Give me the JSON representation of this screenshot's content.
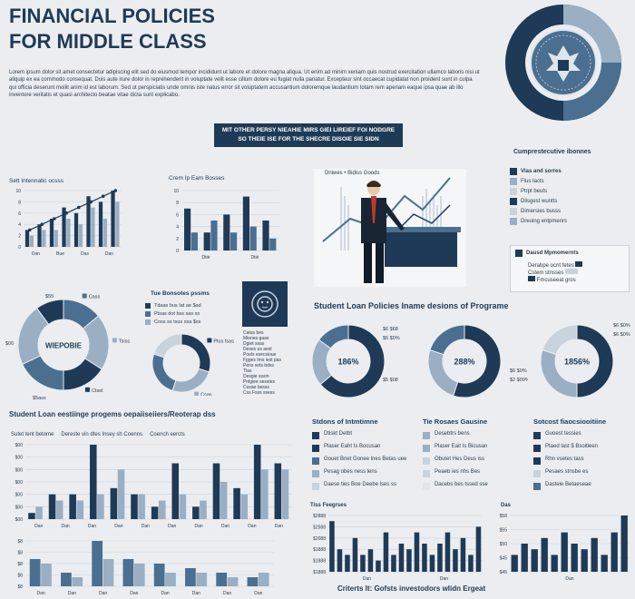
{
  "header": {
    "title_line1": "FINANCIAL POLICIES",
    "title_line2": "FOR MIDDLE CLASS",
    "intro": "Lorem ipsum dolor sit amet consectetur adipiscing elit sed do eiusmod tempor incididunt ut labore et dolore magna aliqua. Ut enim ad minim veniam quis nostrud exercitation ullamco laboris nisi ut aliquip ex ea commodo consequat. Duis aute irure dolor in reprehenderit in voluptate velit esse cillum dolore eu fugiat nulla pariatur. Excepteur sint occaecat cupidatat non proident sunt in culpa qui officia deserunt mollit anim id est laborum. Sed ut perspiciatis unde omnis iste natus error sit voluptatem accusantium doloremque laudantium totam rem aperiam eaque ipsa quae ab illo inventore veritatis et quasi architecto beatae vitae dicta sunt explicabo.",
    "banner_line1": "MIT OTHER PERSY NIEAHIE MIRS GIEI LIREIEF FOI NODGRE",
    "banner_line2": "SO THEIE ISE FOR THE SHECRE DISOIE SIE SIDN"
  },
  "colors": {
    "navy": "#1f3a56",
    "mid": "#4a6f91",
    "light": "#9aafc4",
    "pale": "#c9d3de"
  },
  "chart_data": [
    {
      "type": "bar",
      "title": "Sett Intennatic ocsss",
      "series": [
        {
          "name": "",
          "values": [
            3,
            4,
            5,
            7,
            6,
            9,
            8,
            10
          ]
        },
        {
          "name": "",
          "values": [
            2,
            3,
            3,
            5,
            4,
            7,
            5,
            8
          ]
        }
      ],
      "line_values": [
        3,
        4,
        5,
        6,
        7,
        8,
        9,
        10
      ],
      "categories": [
        "",
        "",
        "",
        "",
        "",
        "",
        "",
        ""
      ],
      "xticks": [
        "Dan",
        "Bue",
        "Das",
        "Dan"
      ],
      "yticks": [
        "10",
        "8",
        "6",
        "4",
        "2",
        "0"
      ]
    },
    {
      "type": "bar",
      "title": "Crem Ip Eam Bosses",
      "series": [
        {
          "name": "",
          "values": [
            7,
            3,
            6,
            9,
            5
          ]
        },
        {
          "name": "",
          "values": [
            3,
            5,
            3,
            4,
            2
          ]
        }
      ],
      "xticks": [
        "Dtiè",
        "Dtiè"
      ],
      "yticks": [
        "10",
        "8",
        "6",
        "4",
        "2",
        "0"
      ]
    },
    {
      "type": "pie",
      "title": "",
      "center_label": "WIEPOBIE",
      "slices": [
        {
          "label": "Cass",
          "value": 14
        },
        {
          "label": "Tsiss",
          "value": 20
        },
        {
          "label": "Ctsel",
          "value": 16
        },
        {
          "label": "",
          "value": 18
        },
        {
          "label": "",
          "value": 22
        },
        {
          "label": "",
          "value": 10
        }
      ],
      "outer_labels": [
        "$55",
        "$00",
        "$5ass"
      ]
    },
    {
      "type": "pie",
      "title": "Tue Bonsotes pssms",
      "center_label": "",
      "slices": [
        {
          "label": "Ptus fsas",
          "value": 30
        },
        {
          "label": "Csas",
          "value": 25
        },
        {
          "label": "",
          "value": 25
        },
        {
          "label": "",
          "value": 20
        }
      ]
    },
    {
      "type": "pie",
      "title": "Student Loan Policies Iname desions of Programe",
      "center_label": "186%",
      "slices": [
        {
          "label": "",
          "value": 64
        },
        {
          "label": "",
          "value": 21
        },
        {
          "label": "",
          "value": 15
        }
      ],
      "outer_labels": [
        "$6 $68",
        "$6 $0%",
        "$5 $08"
      ]
    },
    {
      "type": "pie",
      "title": "",
      "center_label": "288%",
      "slices": [
        {
          "label": "",
          "value": 55
        },
        {
          "label": "",
          "value": 25
        },
        {
          "label": "",
          "value": 20
        }
      ],
      "outer_labels": [
        "$6 $0%",
        "$2 $09%"
      ]
    },
    {
      "type": "pie",
      "title": "",
      "center_label": "1856%",
      "slices": [
        {
          "label": "",
          "value": 50
        },
        {
          "label": "",
          "value": 30
        },
        {
          "label": "",
          "value": 20
        }
      ],
      "outer_labels": [
        "$6 $0%",
        "$6 $0%"
      ]
    },
    {
      "type": "bar",
      "title": "Student Loan eestiinge progems oepaiiseiiers/Reoterap dss",
      "legend": [
        "Sutet tent betome",
        "Dereste vin dtes Insey sh Coenns",
        "Coench eercts"
      ],
      "series": [
        {
          "name": "",
          "values": [
            1,
            4,
            4,
            12,
            5,
            4,
            2,
            9,
            2,
            9,
            5,
            12,
            9
          ]
        },
        {
          "name": "",
          "values": [
            2,
            3,
            3,
            4,
            8,
            4,
            3,
            4,
            3,
            6,
            4,
            8,
            8
          ]
        }
      ],
      "xticks": [
        "Dan",
        "Dan",
        "Dan",
        "Dan",
        "Dan",
        "Dan",
        "Dan",
        "Dan",
        "Dan",
        "Dan"
      ],
      "yticks": [
        "$00",
        "$00",
        "$00",
        "$00",
        "$00",
        "$00",
        "$00"
      ]
    },
    {
      "type": "bar",
      "title": "",
      "series": [
        {
          "name": "",
          "values": [
            6,
            3,
            10,
            6,
            5,
            4,
            3,
            2
          ]
        },
        {
          "name": "",
          "values": [
            5,
            2,
            6,
            5,
            3,
            3,
            2,
            3
          ]
        }
      ],
      "xticks": [
        "Dan",
        "Dan",
        "Dan",
        "Dan",
        "Dan",
        "Dan",
        "Dan",
        "Dan"
      ],
      "yticks": [
        "$8",
        "$8",
        "$8",
        "$8",
        "$8"
      ]
    },
    {
      "type": "bar",
      "title": "Tiss Feegrses",
      "series": [
        {
          "name": "",
          "values": [
            9,
            4,
            3,
            6,
            3,
            4,
            2,
            7,
            3,
            5,
            4,
            7,
            5,
            3,
            5,
            7,
            4,
            6,
            3,
            8
          ]
        }
      ],
      "xticks": [
        "Dan",
        "Dan"
      ],
      "yticks": [
        "$2888",
        "$2588",
        "$2088",
        "$1888",
        "$1888",
        "$1888"
      ]
    },
    {
      "type": "bar",
      "title": "Das",
      "series": [
        {
          "name": "",
          "values": [
            3,
            5,
            4,
            6,
            3,
            7,
            5,
            4,
            6,
            3,
            7,
            10
          ]
        }
      ],
      "xticks": [
        "Dan"
      ],
      "yticks": [
        "$58",
        "$55",
        "$50",
        "$45",
        "$45"
      ]
    }
  ],
  "right_panel": {
    "title": "Cumprestecutive ibonnes",
    "items": [
      "Vlas and sorres",
      "Flus Iacts",
      "Ptrpt beuts",
      "Dlisgest wuntts",
      "Dimersies busss",
      "Dreuing entpmenrs"
    ],
    "box_title": "Dausd Mpmomernts",
    "box_items": [
      "Derabpe ocnt fetes",
      "Cstem stnsses",
      "Fmcuseeat gros"
    ]
  },
  "mini_legend": {
    "title": "Tue Bonsotes pssms",
    "rows": [
      "Tdaas bus Iat ae $ad",
      "Ptsas dot bss sas ss",
      "Coss ss tsus ssa $ss"
    ]
  },
  "emblem_panel": {
    "items": [
      "Catus bes",
      "Mienes gaas",
      "Dgiet ssas",
      "Deses us aest",
      "Poels esecsioue",
      "Fgges Ims iest pas",
      "Pens sets bdss",
      "Tlas",
      "Desgie sssm",
      "Pnlgiee sesstes",
      "Cusae besss",
      "Css Fsss ssess"
    ]
  },
  "image_labels": {
    "businessman": "Dniwes • Bidiss Goods"
  },
  "lists": [
    {
      "title": "Stdons of Intmtimne",
      "items": [
        "Dtiskt Detbt",
        "Plaser Eaht Is Bocusan",
        "Gouet Bnet Gonee lnes Betas uee",
        "Pesag obes ness lens",
        "Daese ties Boe Deebe lses ss",
        "Sneme besen lees sdes",
        "Daes ieue Gnste nes"
      ]
    },
    {
      "title": "Tie Rosaes Gausine",
      "items": [
        "Desebtrs bens",
        "Plaser Eait Is Bicusan",
        "Obutet Hes Deus iss",
        "Peaeb ies nhs Bes",
        "Dacebs bes tssed sse",
        "Daes bede bhes eoss",
        "Dnss taene elses"
      ]
    },
    {
      "title": "Sotcost fiaocsiooitiine",
      "items": [
        "Guoest tessies",
        "Ptaed last $ Bsoitleen",
        "Rhn vsetes tass",
        "Pesaes stnsbe es",
        "Dasteie Betaeseae",
        "Dmte ets Tses esse",
        "Pheoe soeite tsee"
      ]
    }
  ],
  "footer": {
    "caption": "Criterts It: Gofsts investodors wlidn Ergeat"
  }
}
